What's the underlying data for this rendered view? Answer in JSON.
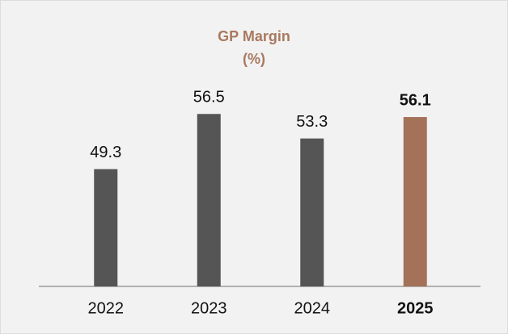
{
  "chart_data": {
    "type": "bar",
    "title": "GP Margin",
    "subtitle": "(%)",
    "categories": [
      "2022",
      "2023",
      "2024",
      "2025"
    ],
    "values": [
      49.3,
      56.5,
      53.3,
      56.1
    ],
    "colors": [
      "#555555",
      "#555555",
      "#555555",
      "#a47258"
    ],
    "title_color": "#a87a5f",
    "highlight": 3,
    "ylim": [
      34,
      60
    ]
  }
}
